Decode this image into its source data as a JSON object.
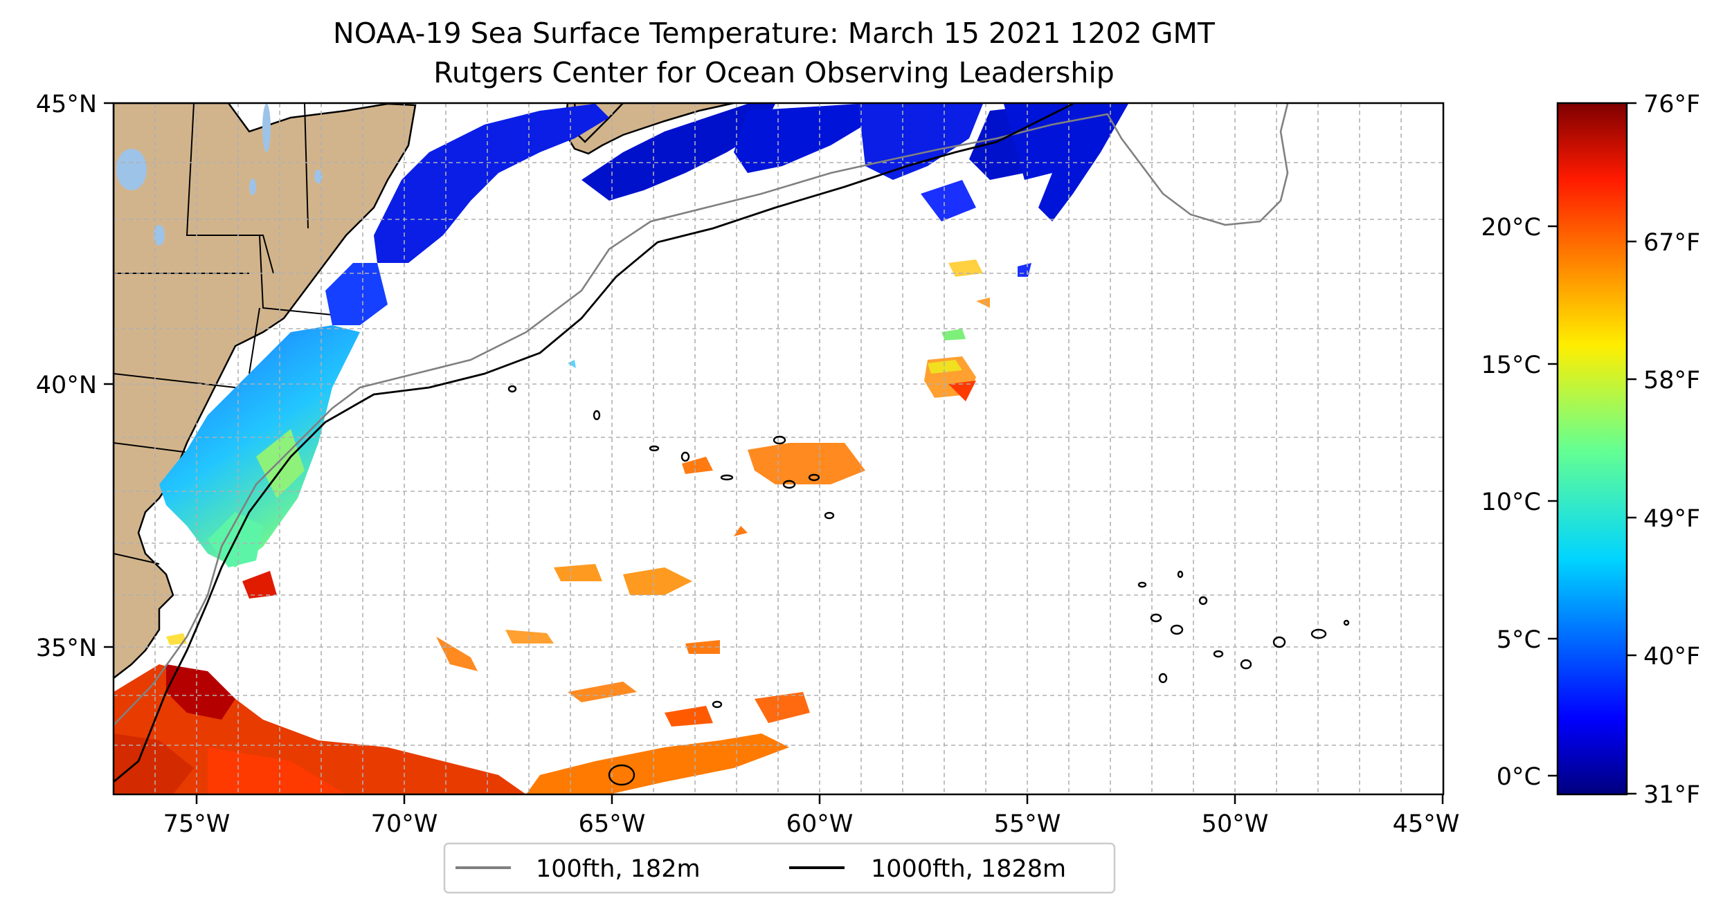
{
  "title": {
    "line1": "NOAA-19 Sea Surface Temperature: March 15 2021 1202 GMT",
    "line2": "Rutgers Center for Ocean Observing Leadership"
  },
  "map": {
    "lon_range": [
      -77,
      -45
    ],
    "lat_range": [
      32.3,
      45
    ],
    "lon_ticks": [
      {
        "value": -75,
        "label": "75°W"
      },
      {
        "value": -70,
        "label": "70°W"
      },
      {
        "value": -65,
        "label": "65°W"
      },
      {
        "value": -60,
        "label": "60°W"
      },
      {
        "value": -55,
        "label": "55°W"
      },
      {
        "value": -50,
        "label": "50°W"
      },
      {
        "value": -45,
        "label": "45°W"
      }
    ],
    "lat_ticks": [
      {
        "value": 45,
        "label": "45°N"
      },
      {
        "value": 40,
        "label": "40°N"
      },
      {
        "value": 35,
        "label": "35°N"
      }
    ],
    "grid": true,
    "colors": {
      "land": "#d2b48c",
      "lakes": "#9ec3e8",
      "ocean_no_data": "#ffffff",
      "isobath_100fth": "#808080",
      "isobath_1000fth": "#000000"
    }
  },
  "legend": {
    "placement": "bottom-center",
    "entries": [
      {
        "label": "100fth, 182m",
        "color": "#808080"
      },
      {
        "label": "1000fth, 1828m",
        "color": "#000000"
      }
    ]
  },
  "colorbar": {
    "colormap": "jet",
    "range_f": [
      31,
      76
    ],
    "celsius_ticks": [
      {
        "value": 20,
        "label": "20°C"
      },
      {
        "value": 15,
        "label": "15°C"
      },
      {
        "value": 10,
        "label": "10°C"
      },
      {
        "value": 5,
        "label": "5°C"
      },
      {
        "value": 0,
        "label": "0°C"
      }
    ],
    "fahrenheit_ticks": [
      {
        "value": 76,
        "label": "76°F"
      },
      {
        "value": 67,
        "label": "67°F"
      },
      {
        "value": 58,
        "label": "58°F"
      },
      {
        "value": 49,
        "label": "49°F"
      },
      {
        "value": 40,
        "label": "40°F"
      },
      {
        "value": 31,
        "label": "31°F"
      }
    ]
  }
}
